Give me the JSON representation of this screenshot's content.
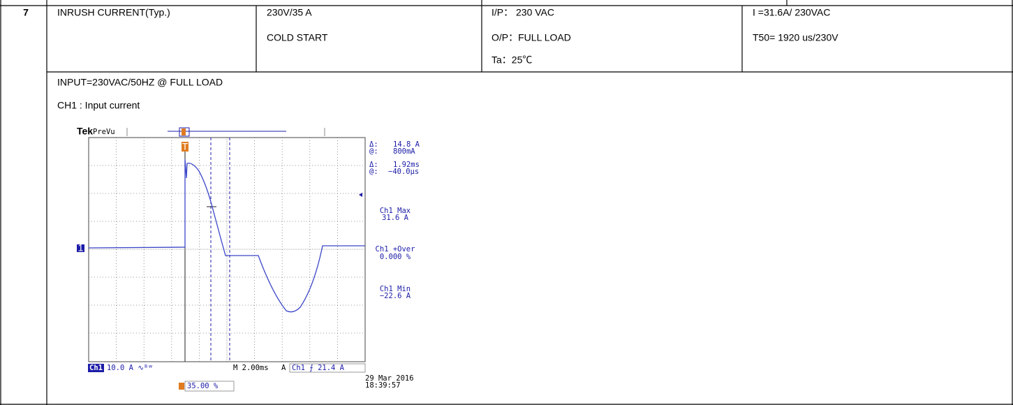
{
  "table": {
    "rows": [
      {
        "no": "7",
        "item": "INRUSH CURRENT(Typ.)",
        "condition": [
          "230V/35 A",
          "COLD START"
        ],
        "setup": [
          "I/P： 230 VAC",
          "O/P：FULL LOAD",
          "Ta：25℃"
        ],
        "result": [
          "I =31.6A/ 230VAC",
          "T50= 1920 us/230V"
        ]
      }
    ]
  },
  "notes": [
    "INPUT=230VAC/50HZ @ FULL LOAD",
    "CH1 : Input current"
  ],
  "scope": {
    "brand": "Tek",
    "mode": "PreVu",
    "cursors": [
      {
        "label": "Δ:",
        "value": "14.8 A"
      },
      {
        "label": "@:",
        "value": "800mA"
      },
      {
        "label": "Δ:",
        "value": "1.92ms"
      },
      {
        "label": "@:",
        "value": "−40.0µs"
      }
    ],
    "measurements": [
      {
        "name": "Ch1 Max",
        "value": "31.6 A"
      },
      {
        "name": "Ch1 +Over",
        "value": "0.000 %"
      },
      {
        "name": "Ch1 Min",
        "value": "−22.6 A"
      }
    ],
    "channel": "Ch1",
    "channel_scale": "10.0 A ∿ᴮʷ",
    "timebase": "M 2.00ms",
    "trigger_source": "A",
    "trigger": "Ch1 ⨍  21.4 A",
    "date": "29 Mar 2016",
    "time": "18:39:57",
    "trigger_position": "35.00 %",
    "channel_marker": "1",
    "trigger_marker": "T"
  }
}
